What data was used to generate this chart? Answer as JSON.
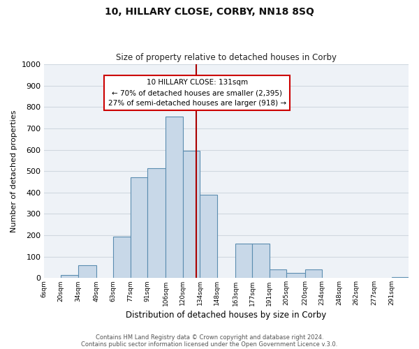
{
  "title": "10, HILLARY CLOSE, CORBY, NN18 8SQ",
  "subtitle": "Size of property relative to detached houses in Corby",
  "xlabel": "Distribution of detached houses by size in Corby",
  "ylabel": "Number of detached properties",
  "bin_labels": [
    "6sqm",
    "20sqm",
    "34sqm",
    "49sqm",
    "63sqm",
    "77sqm",
    "91sqm",
    "106sqm",
    "120sqm",
    "134sqm",
    "148sqm",
    "163sqm",
    "177sqm",
    "191sqm",
    "205sqm",
    "220sqm",
    "234sqm",
    "248sqm",
    "262sqm",
    "277sqm",
    "291sqm"
  ],
  "bin_edges": [
    6,
    20,
    34,
    49,
    63,
    77,
    91,
    106,
    120,
    134,
    148,
    163,
    177,
    191,
    205,
    220,
    234,
    248,
    262,
    277,
    291
  ],
  "bar_heights": [
    0,
    15,
    60,
    0,
    195,
    470,
    515,
    755,
    595,
    390,
    0,
    160,
    160,
    42,
    25,
    42,
    0,
    0,
    0,
    0,
    5
  ],
  "bar_color": "#c8d8e8",
  "bar_edgecolor": "#5b8db0",
  "vline_x": 131,
  "vline_color": "#aa0000",
  "ylim": [
    0,
    1000
  ],
  "yticks": [
    0,
    100,
    200,
    300,
    400,
    500,
    600,
    700,
    800,
    900,
    1000
  ],
  "annotation_title": "10 HILLARY CLOSE: 131sqm",
  "annotation_line1": "← 70% of detached houses are smaller (2,395)",
  "annotation_line2": "27% of semi-detached houses are larger (918) →",
  "annotation_box_color": "#ffffff",
  "annotation_box_edgecolor": "#cc0000",
  "footer1": "Contains HM Land Registry data © Crown copyright and database right 2024.",
  "footer2": "Contains public sector information licensed under the Open Government Licence v.3.0.",
  "background_color": "#ffffff",
  "plot_bg_color": "#eef2f7",
  "grid_color": "#d0d8e0"
}
